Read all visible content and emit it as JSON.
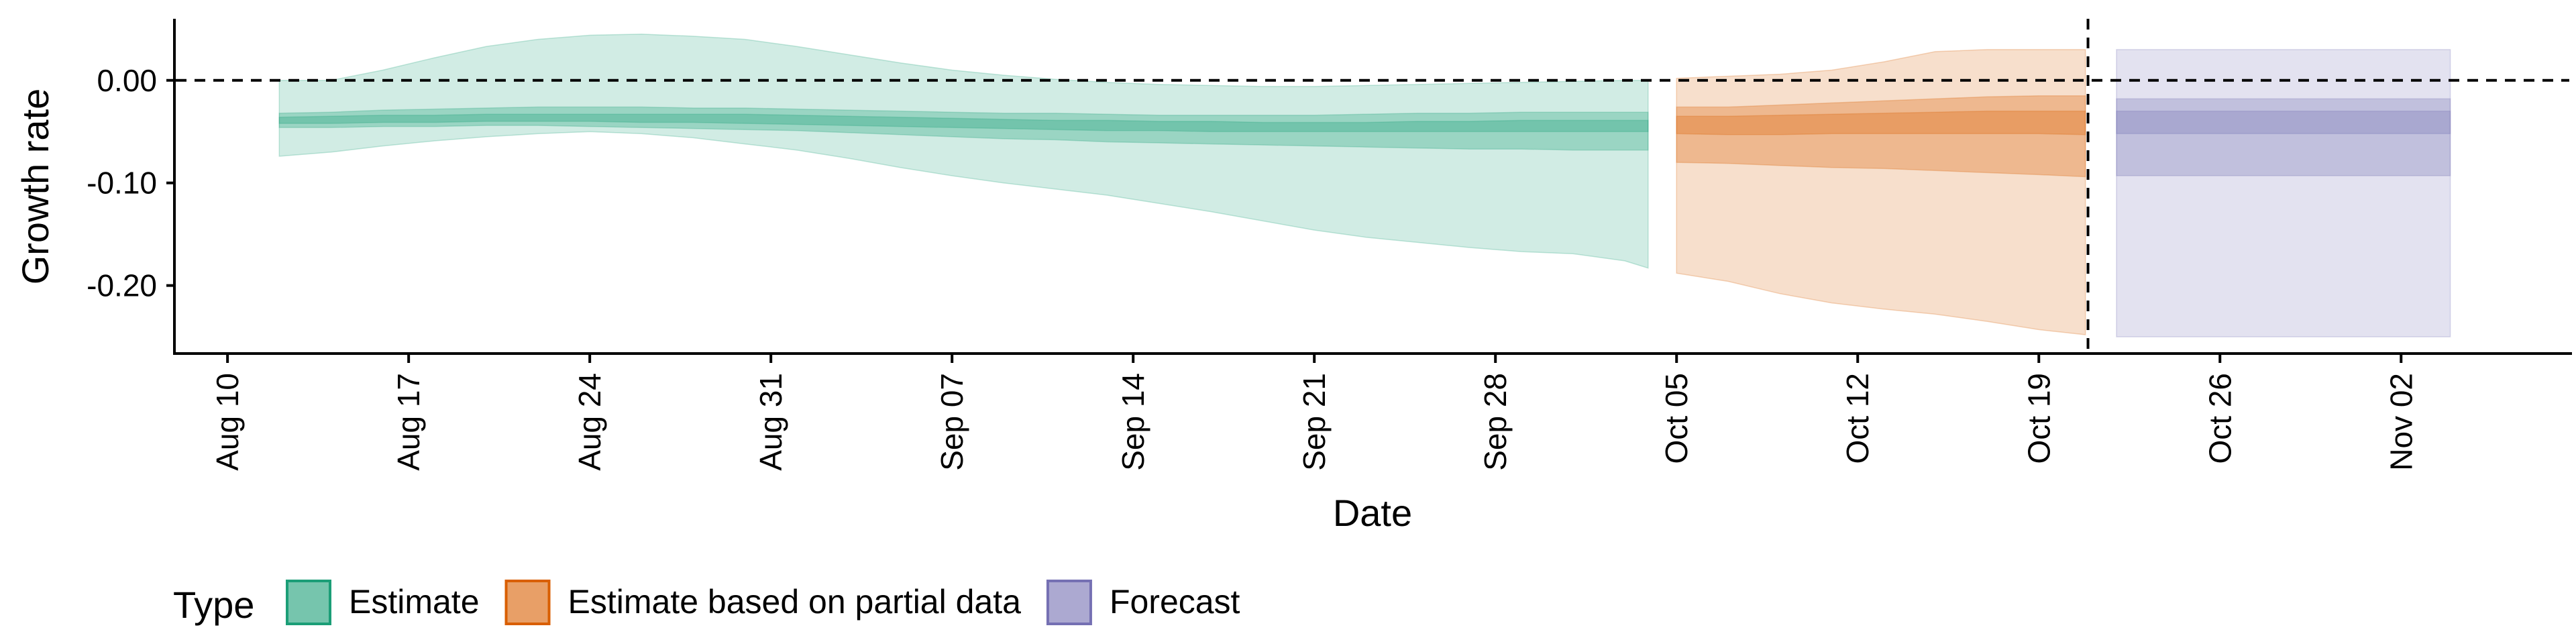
{
  "chart_data": {
    "type": "area",
    "xlabel": "Date",
    "ylabel": "Growth rate",
    "ylim": [
      -0.265,
      0.06
    ],
    "y_ticks": [
      {
        "value": 0.0,
        "label": "0.00"
      },
      {
        "value": -0.1,
        "label": "-0.10"
      },
      {
        "value": -0.2,
        "label": "-0.20"
      }
    ],
    "x_ticks": [
      "Aug 10",
      "Aug 17",
      "Aug 24",
      "Aug 31",
      "Sep 07",
      "Sep 14",
      "Sep 21",
      "Sep 28",
      "Oct 05",
      "Oct 12",
      "Oct 19",
      "Oct 26",
      "Nov 02"
    ],
    "x_tick_days": [
      0,
      7,
      14,
      21,
      28,
      35,
      42,
      49,
      56,
      63,
      70,
      77,
      84
    ],
    "x_range_days": [
      -2,
      90.5
    ],
    "reference_lines": [
      {
        "axis": "y",
        "value": 0,
        "style": "dashed"
      },
      {
        "axis": "x",
        "date": "Oct 21",
        "day": 71.9,
        "style": "dashed"
      }
    ],
    "grid": false,
    "legend": {
      "title": "Type",
      "position": "bottom",
      "entries": [
        {
          "label": "Estimate",
          "fill": "#1b9e77",
          "stroke": "#1b9e77"
        },
        {
          "label": "Estimate based on partial data",
          "fill": "#d95f02",
          "stroke": "#d95f02"
        },
        {
          "label": "Forecast",
          "fill": "#7570b3",
          "stroke": "#7570b3"
        }
      ]
    },
    "series": [
      {
        "name": "Estimate",
        "color": "#1b9e77",
        "x": [
          2,
          4,
          6,
          8,
          10,
          12,
          14,
          16,
          18,
          20,
          22,
          24,
          26,
          28,
          30,
          32,
          34,
          36,
          38,
          40,
          42,
          44,
          46,
          48,
          50,
          52,
          54,
          54.9
        ],
        "outer_upper": [
          0.0,
          0.0,
          0.01,
          0.022,
          0.033,
          0.04,
          0.044,
          0.045,
          0.043,
          0.04,
          0.033,
          0.025,
          0.017,
          0.01,
          0.005,
          0.001,
          -0.002,
          -0.004,
          -0.005,
          -0.006,
          -0.006,
          -0.005,
          -0.004,
          -0.003,
          -0.002,
          -0.001,
          0.0,
          0.0
        ],
        "outer_lower": [
          -0.074,
          -0.07,
          -0.064,
          -0.059,
          -0.055,
          -0.052,
          -0.05,
          -0.052,
          -0.056,
          -0.062,
          -0.068,
          -0.076,
          -0.085,
          -0.093,
          -0.1,
          -0.106,
          -0.112,
          -0.12,
          -0.128,
          -0.137,
          -0.146,
          -0.153,
          -0.158,
          -0.163,
          -0.167,
          -0.169,
          -0.176,
          -0.183
        ],
        "mid_upper": [
          -0.032,
          -0.031,
          -0.029,
          -0.028,
          -0.027,
          -0.026,
          -0.026,
          -0.026,
          -0.027,
          -0.027,
          -0.028,
          -0.029,
          -0.03,
          -0.031,
          -0.032,
          -0.032,
          -0.033,
          -0.034,
          -0.034,
          -0.034,
          -0.034,
          -0.033,
          -0.032,
          -0.032,
          -0.031,
          -0.031,
          -0.031,
          -0.031
        ],
        "mid_lower": [
          -0.046,
          -0.046,
          -0.045,
          -0.045,
          -0.044,
          -0.044,
          -0.045,
          -0.046,
          -0.047,
          -0.048,
          -0.049,
          -0.051,
          -0.053,
          -0.055,
          -0.057,
          -0.058,
          -0.06,
          -0.061,
          -0.062,
          -0.063,
          -0.064,
          -0.065,
          -0.066,
          -0.067,
          -0.067,
          -0.068,
          -0.068,
          -0.068
        ],
        "inner_upper": [
          -0.036,
          -0.035,
          -0.034,
          -0.034,
          -0.033,
          -0.033,
          -0.033,
          -0.033,
          -0.033,
          -0.033,
          -0.034,
          -0.035,
          -0.036,
          -0.037,
          -0.038,
          -0.039,
          -0.039,
          -0.04,
          -0.04,
          -0.041,
          -0.041,
          -0.041,
          -0.04,
          -0.04,
          -0.039,
          -0.039,
          -0.039,
          -0.039
        ],
        "inner_lower": [
          -0.042,
          -0.042,
          -0.041,
          -0.041,
          -0.04,
          -0.04,
          -0.04,
          -0.041,
          -0.041,
          -0.042,
          -0.043,
          -0.044,
          -0.045,
          -0.046,
          -0.047,
          -0.048,
          -0.049,
          -0.049,
          -0.05,
          -0.05,
          -0.05,
          -0.05,
          -0.05,
          -0.05,
          -0.05,
          -0.05,
          -0.05,
          -0.05
        ]
      },
      {
        "name": "Estimate based on partial data",
        "color": "#d95f02",
        "x": [
          56,
          58,
          60,
          62,
          64,
          66,
          68,
          70,
          71.8
        ],
        "outer_upper": [
          0.002,
          0.004,
          0.006,
          0.01,
          0.018,
          0.028,
          0.03,
          0.03,
          0.03
        ],
        "outer_lower": [
          -0.188,
          -0.196,
          -0.208,
          -0.217,
          -0.223,
          -0.228,
          -0.235,
          -0.243,
          -0.248
        ],
        "mid_upper": [
          -0.026,
          -0.026,
          -0.024,
          -0.022,
          -0.02,
          -0.018,
          -0.016,
          -0.015,
          -0.015
        ],
        "mid_lower": [
          -0.08,
          -0.081,
          -0.083,
          -0.085,
          -0.086,
          -0.088,
          -0.09,
          -0.092,
          -0.094
        ],
        "inner_upper": [
          -0.035,
          -0.035,
          -0.034,
          -0.033,
          -0.032,
          -0.031,
          -0.03,
          -0.03,
          -0.03
        ],
        "inner_lower": [
          -0.052,
          -0.053,
          -0.053,
          -0.052,
          -0.052,
          -0.052,
          -0.052,
          -0.052,
          -0.053
        ]
      },
      {
        "name": "Forecast",
        "color": "#7570b3",
        "x": [
          73,
          85.9
        ],
        "outer_upper": [
          0.03,
          0.03
        ],
        "outer_lower": [
          -0.25,
          -0.25
        ],
        "mid_upper": [
          -0.018,
          -0.018
        ],
        "mid_lower": [
          -0.093,
          -0.093
        ],
        "inner_upper": [
          -0.03,
          -0.03
        ],
        "inner_lower": [
          -0.052,
          -0.052
        ]
      }
    ]
  }
}
